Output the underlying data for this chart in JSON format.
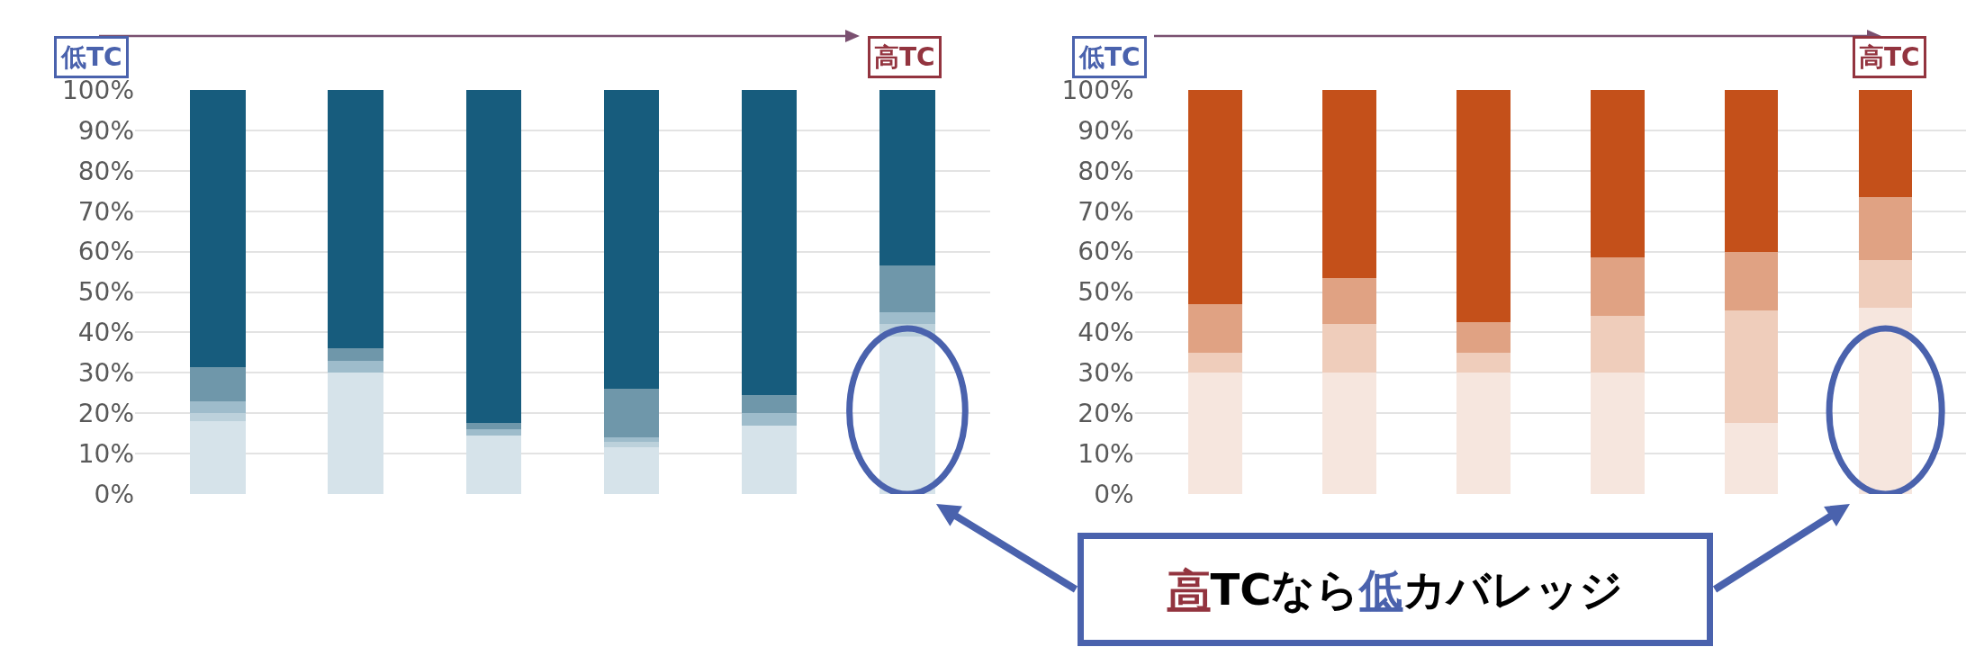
{
  "chart_data": [
    {
      "type": "bar",
      "stacked": true,
      "categories": [
        null,
        null,
        null,
        null,
        null,
        null
      ],
      "tick_labels": "y",
      "grid": "y",
      "ylim": [
        0,
        100
      ],
      "yticks": [
        {
          "value": 0,
          "label": "0%"
        },
        {
          "value": 10,
          "label": "10%"
        },
        {
          "value": 20,
          "label": "20%"
        },
        {
          "value": 30,
          "label": "30%"
        },
        {
          "value": 40,
          "label": "40%"
        },
        {
          "value": 50,
          "label": "50%"
        },
        {
          "value": 60,
          "label": "60%"
        },
        {
          "value": 70,
          "label": "70%"
        },
        {
          "value": 80,
          "label": "80%"
        },
        {
          "value": 90,
          "label": "90%"
        },
        {
          "value": 100,
          "label": "100%"
        }
      ],
      "series": [
        {
          "color": "#d6e3ea",
          "values": [
            18,
            30,
            14.5,
            11.5,
            17,
            39
          ]
        },
        {
          "color": "#bcd1db",
          "values": [
            2,
            0,
            0,
            1.5,
            0,
            3
          ]
        },
        {
          "color": "#9ebccb",
          "values": [
            3,
            3,
            1.5,
            1,
            3,
            3
          ]
        },
        {
          "color": "#6f97aa",
          "values": [
            8.5,
            3,
            1.5,
            12,
            4.5,
            11.5
          ]
        },
        {
          "color": "#175c7d",
          "values": [
            68.5,
            64,
            82.5,
            74,
            75.5,
            43.5
          ]
        }
      ],
      "annotations": [
        "低TC",
        "高TC"
      ]
    },
    {
      "type": "bar",
      "stacked": true,
      "categories": [
        null,
        null,
        null,
        null,
        null,
        null
      ],
      "tick_labels": "y",
      "grid": "y",
      "ylim": [
        0,
        100
      ],
      "yticks": [
        {
          "value": 0,
          "label": "0%"
        },
        {
          "value": 10,
          "label": "10%"
        },
        {
          "value": 20,
          "label": "20%"
        },
        {
          "value": 30,
          "label": "30%"
        },
        {
          "value": 40,
          "label": "40%"
        },
        {
          "value": 50,
          "label": "50%"
        },
        {
          "value": 60,
          "label": "60%"
        },
        {
          "value": 70,
          "label": "70%"
        },
        {
          "value": 80,
          "label": "80%"
        },
        {
          "value": 90,
          "label": "90%"
        },
        {
          "value": 100,
          "label": "100%"
        }
      ],
      "series": [
        {
          "color": "#f6e6de",
          "values": [
            30,
            30,
            30,
            30,
            17.5,
            46
          ]
        },
        {
          "color": "#efcdbb",
          "values": [
            5,
            12,
            5,
            14,
            28,
            12
          ]
        },
        {
          "color": "#e0a283",
          "values": [
            12,
            11.5,
            7.5,
            14.5,
            14.5,
            15.5
          ]
        },
        {
          "color": "#c4501a",
          "values": [
            53,
            46.5,
            57.5,
            41.5,
            40,
            26.5
          ]
        }
      ],
      "annotations": [
        "低TC",
        "高TC",
        "高TCなら低カバレッジ"
      ]
    }
  ]
}
